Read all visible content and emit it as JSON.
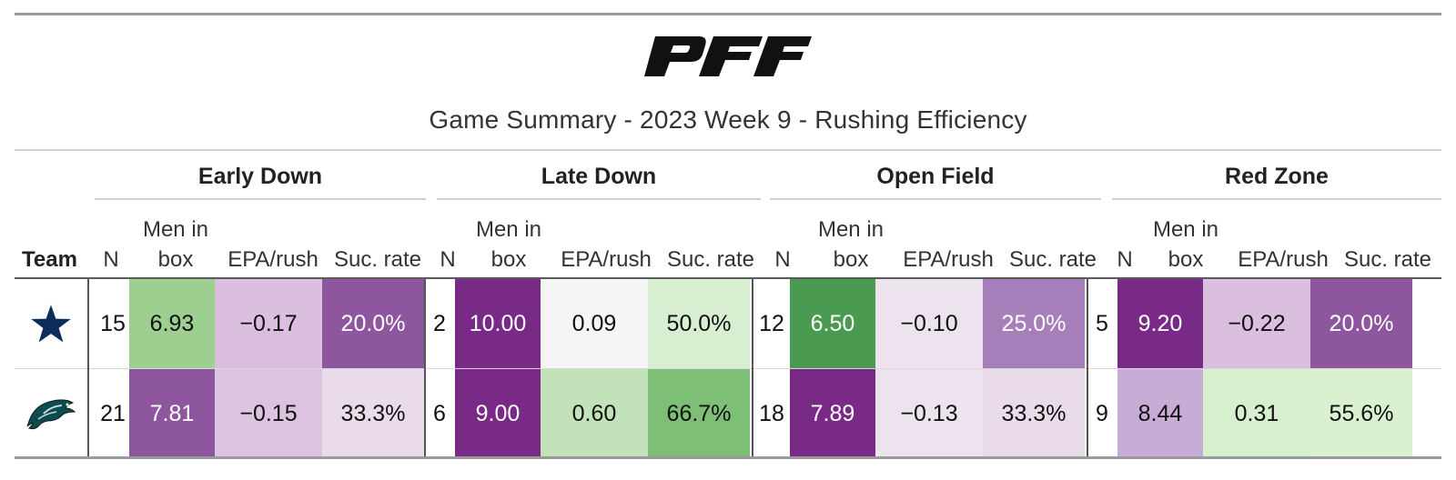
{
  "brand": {
    "logo_text": "PFF",
    "logo_color": "#111111"
  },
  "title": "Game Summary - 2023 Week 9 - Rushing Efficiency",
  "groups": [
    {
      "label": "Early Down"
    },
    {
      "label": "Late Down"
    },
    {
      "label": "Open Field"
    },
    {
      "label": "Red Zone"
    }
  ],
  "column_headers": {
    "team": "Team",
    "n": "N",
    "men_in_box_line1": "Men in",
    "men_in_box_line2": "box",
    "epa": "EPA/rush",
    "suc": "Suc. rate"
  },
  "rows": [
    {
      "team_icon": "cowboys-star-logo",
      "cells": [
        {
          "n": "15",
          "box": "6.93",
          "epa": "−0.17",
          "suc": "20.0%"
        },
        {
          "n": "2",
          "box": "10.00",
          "epa": "0.09",
          "suc": "50.0%"
        },
        {
          "n": "12",
          "box": "6.50",
          "epa": "−0.10",
          "suc": "25.0%"
        },
        {
          "n": "5",
          "box": "9.20",
          "epa": "−0.22",
          "suc": "20.0%"
        }
      ]
    },
    {
      "team_icon": "eagles-logo",
      "cells": [
        {
          "n": "21",
          "box": "7.81",
          "epa": "−0.15",
          "suc": "33.3%"
        },
        {
          "n": "6",
          "box": "9.00",
          "epa": "0.60",
          "suc": "66.7%"
        },
        {
          "n": "18",
          "box": "7.89",
          "epa": "−0.13",
          "suc": "33.3%"
        },
        {
          "n": "9",
          "box": "8.44",
          "epa": "0.31",
          "suc": "55.6%"
        }
      ]
    }
  ],
  "colors": {
    "row1": [
      {
        "box": "#9ccf90",
        "epa": "#dac0de",
        "suc": "#8f56a0"
      },
      {
        "box": "#782a86",
        "epa": "#f5f5f5",
        "suc": "#d7efd0"
      },
      {
        "box": "#4b9a52",
        "epa": "#ede3ee",
        "suc": "#a67eba"
      },
      {
        "box": "#782a86",
        "epa": "#dac0de",
        "suc": "#8f56a0"
      }
    ],
    "row2": [
      {
        "box": "#8f56a0",
        "epa": "#dcc3df",
        "suc": "#e9dbea"
      },
      {
        "box": "#782a86",
        "epa": "#c2e3b9",
        "suc": "#7dbf77"
      },
      {
        "box": "#782a86",
        "epa": "#ede3ee",
        "suc": "#e9dbea"
      },
      {
        "box": "#c7add6",
        "epa": "#d6efcd",
        "suc": "#d9f0d1"
      }
    ]
  }
}
